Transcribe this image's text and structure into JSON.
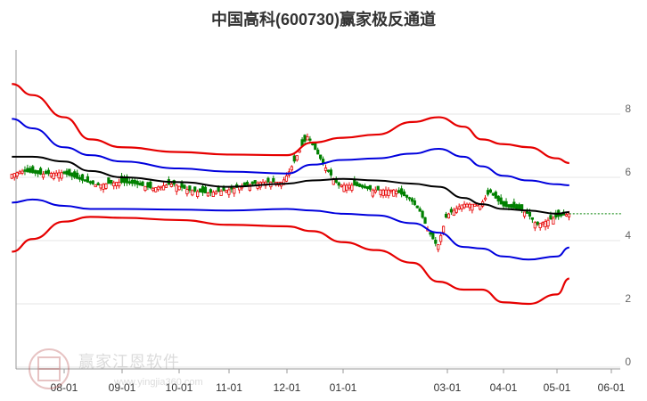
{
  "title": "中国高科(600730)赢家极反通道",
  "watermark": {
    "brand": "赢家江恩软件",
    "url": "www.yingjia360.com"
  },
  "chart_data": {
    "type": "line",
    "x_ticks": [
      "08-01",
      "09-01",
      "10-01",
      "11-01",
      "12-01",
      "01-01",
      "03-01",
      "04-01",
      "05-01",
      "06-01"
    ],
    "y_ticks": [
      0,
      2,
      4,
      6,
      8
    ],
    "ylim": [
      0,
      9
    ],
    "grid": true,
    "reference_price": 4.85,
    "colors": {
      "outer_band": "#e60000",
      "inner_band": "#0000dd",
      "middle_line": "#000000",
      "up": "#e60000",
      "down": "#008000",
      "reference": "#008000"
    },
    "series": [
      {
        "role": "outer_upper",
        "x": [
          "07-04",
          "07-15",
          "08-01",
          "08-15",
          "09-01",
          "10-01",
          "11-01",
          "12-01",
          "12-15",
          "01-01",
          "01-20",
          "02-10",
          "02-25",
          "03-10",
          "03-20",
          "04-01",
          "04-15",
          "05-01",
          "05-08"
        ],
        "values": [
          8.95,
          8.6,
          7.9,
          7.2,
          6.95,
          6.8,
          6.72,
          6.7,
          7.1,
          7.25,
          7.35,
          7.75,
          7.9,
          7.6,
          7.2,
          7.05,
          6.95,
          6.6,
          6.45
        ]
      },
      {
        "role": "inner_upper",
        "x": [
          "07-04",
          "07-15",
          "08-01",
          "08-15",
          "09-01",
          "10-01",
          "11-01",
          "12-01",
          "12-15",
          "01-01",
          "01-20",
          "02-10",
          "02-25",
          "03-10",
          "03-20",
          "04-01",
          "04-15",
          "05-01",
          "05-08"
        ],
        "values": [
          7.85,
          7.55,
          6.95,
          6.7,
          6.5,
          6.28,
          6.18,
          6.12,
          6.4,
          6.55,
          6.6,
          6.75,
          6.9,
          6.65,
          6.35,
          6.05,
          5.9,
          5.78,
          5.75
        ]
      },
      {
        "role": "middle",
        "x": [
          "07-04",
          "07-15",
          "08-01",
          "08-15",
          "09-01",
          "10-01",
          "11-01",
          "12-01",
          "12-15",
          "01-01",
          "01-20",
          "02-10",
          "02-25",
          "03-10",
          "03-20",
          "04-01",
          "04-15",
          "05-01",
          "05-08"
        ],
        "values": [
          6.65,
          6.65,
          6.5,
          6.2,
          6.0,
          5.85,
          5.7,
          5.8,
          5.9,
          5.95,
          5.9,
          5.8,
          5.7,
          5.35,
          5.15,
          5.0,
          4.95,
          4.85,
          4.9
        ]
      },
      {
        "role": "inner_lower",
        "x": [
          "07-04",
          "07-15",
          "08-01",
          "08-15",
          "09-01",
          "10-01",
          "11-01",
          "12-01",
          "12-15",
          "01-01",
          "01-20",
          "02-10",
          "02-25",
          "03-10",
          "03-20",
          "04-01",
          "04-15",
          "05-01",
          "05-08"
        ],
        "values": [
          5.2,
          5.3,
          5.1,
          5.0,
          5.0,
          4.98,
          4.95,
          5.0,
          4.95,
          4.85,
          4.8,
          4.55,
          4.25,
          3.8,
          3.75,
          3.5,
          3.4,
          3.5,
          3.78
        ]
      },
      {
        "role": "outer_lower",
        "x": [
          "07-04",
          "07-15",
          "08-01",
          "08-15",
          "09-01",
          "10-01",
          "11-01",
          "12-01",
          "12-15",
          "01-01",
          "01-20",
          "02-10",
          "02-25",
          "03-10",
          "03-20",
          "04-01",
          "04-15",
          "05-01",
          "05-08"
        ],
        "values": [
          3.65,
          4.05,
          4.6,
          4.75,
          4.72,
          4.65,
          4.5,
          4.45,
          4.3,
          3.95,
          3.7,
          3.3,
          2.7,
          2.45,
          2.45,
          2.05,
          2.0,
          2.3,
          2.8
        ]
      },
      {
        "role": "close",
        "x": [
          "07-04",
          "07-10",
          "07-20",
          "08-01",
          "08-10",
          "08-20",
          "09-01",
          "09-10",
          "09-20",
          "10-01",
          "10-10",
          "10-20",
          "11-01",
          "11-10",
          "11-20",
          "12-01",
          "12-05",
          "12-10",
          "12-15",
          "12-20",
          "12-25",
          "01-01",
          "01-10",
          "01-20",
          "02-01",
          "02-10",
          "02-15",
          "02-20",
          "02-25",
          "03-01",
          "03-10",
          "03-20",
          "03-25",
          "04-01",
          "04-10",
          "04-15",
          "04-20",
          "05-01",
          "05-08"
        ],
        "values": [
          6.1,
          6.2,
          6.1,
          6.15,
          5.95,
          5.75,
          5.85,
          5.8,
          5.65,
          5.8,
          5.6,
          5.5,
          5.6,
          5.75,
          5.85,
          5.85,
          6.2,
          6.8,
          7.3,
          6.8,
          6.3,
          5.75,
          5.75,
          5.6,
          5.6,
          5.3,
          4.95,
          4.3,
          3.8,
          4.8,
          5.15,
          5.15,
          5.55,
          5.1,
          5.0,
          4.85,
          4.5,
          4.75,
          4.85
        ]
      }
    ]
  }
}
